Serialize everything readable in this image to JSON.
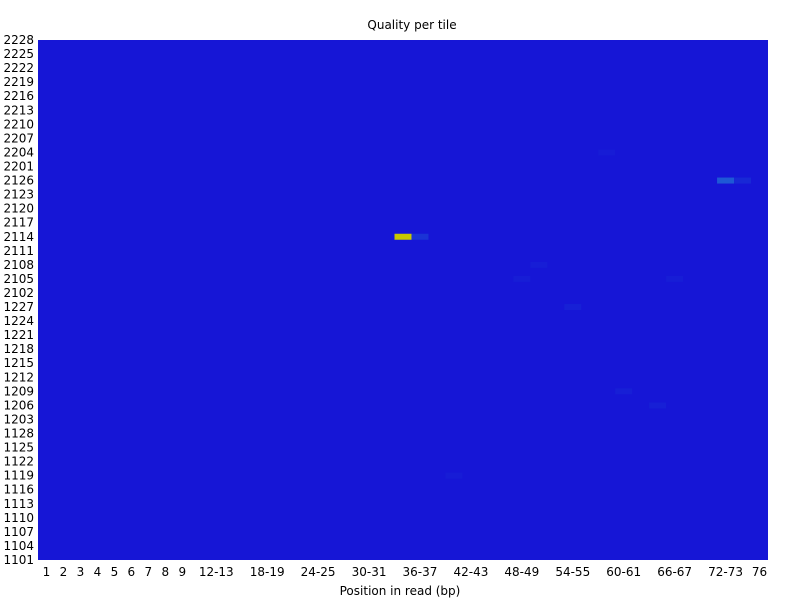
{
  "chart_data": {
    "type": "heatmap",
    "title": "Quality per tile",
    "xlabel": "Position in read (bp)",
    "ylabel": "",
    "x_tick_labels": [
      "1",
      "2",
      "3",
      "4",
      "5",
      "6",
      "7",
      "8",
      "9",
      "12-13",
      "18-19",
      "24-25",
      "30-31",
      "36-37",
      "42-43",
      "48-49",
      "54-55",
      "60-61",
      "66-67",
      "72-73",
      "76"
    ],
    "y_tick_labels": [
      "2228",
      "2225",
      "2222",
      "2219",
      "2216",
      "2213",
      "2210",
      "2207",
      "2204",
      "2201",
      "2126",
      "2123",
      "2120",
      "2117",
      "2114",
      "2111",
      "2108",
      "2105",
      "2102",
      "1227",
      "1224",
      "1221",
      "1218",
      "1215",
      "1212",
      "1209",
      "1206",
      "1203",
      "1128",
      "1125",
      "1122",
      "1119",
      "1116",
      "1113",
      "1110",
      "1107",
      "1104",
      "1101"
    ],
    "background_color": "#1616d6",
    "colors": {
      "low": "#1616d6",
      "mid": "#1f5fd6",
      "high": "#c8c800"
    },
    "cells": [
      {
        "tile": "2114",
        "position": "34-35",
        "level": 1.0
      },
      {
        "tile": "2114",
        "position": "36-37",
        "level": 0.2
      },
      {
        "tile": "2126",
        "position": "72-73",
        "level": 0.45
      },
      {
        "tile": "2126",
        "position": "74-75",
        "level": 0.12
      },
      {
        "tile": "2108",
        "position": "50-51",
        "level": 0.05
      },
      {
        "tile": "2105",
        "position": "48-49",
        "level": 0.05
      },
      {
        "tile": "2105",
        "position": "66-67",
        "level": 0.05
      },
      {
        "tile": "1227",
        "position": "54-55",
        "level": 0.07
      },
      {
        "tile": "1209",
        "position": "60-61",
        "level": 0.06
      },
      {
        "tile": "1206",
        "position": "64-65",
        "level": 0.06
      },
      {
        "tile": "2204",
        "position": "58-59",
        "level": 0.04
      },
      {
        "tile": "1119",
        "position": "40-41",
        "level": 0.04
      }
    ]
  }
}
